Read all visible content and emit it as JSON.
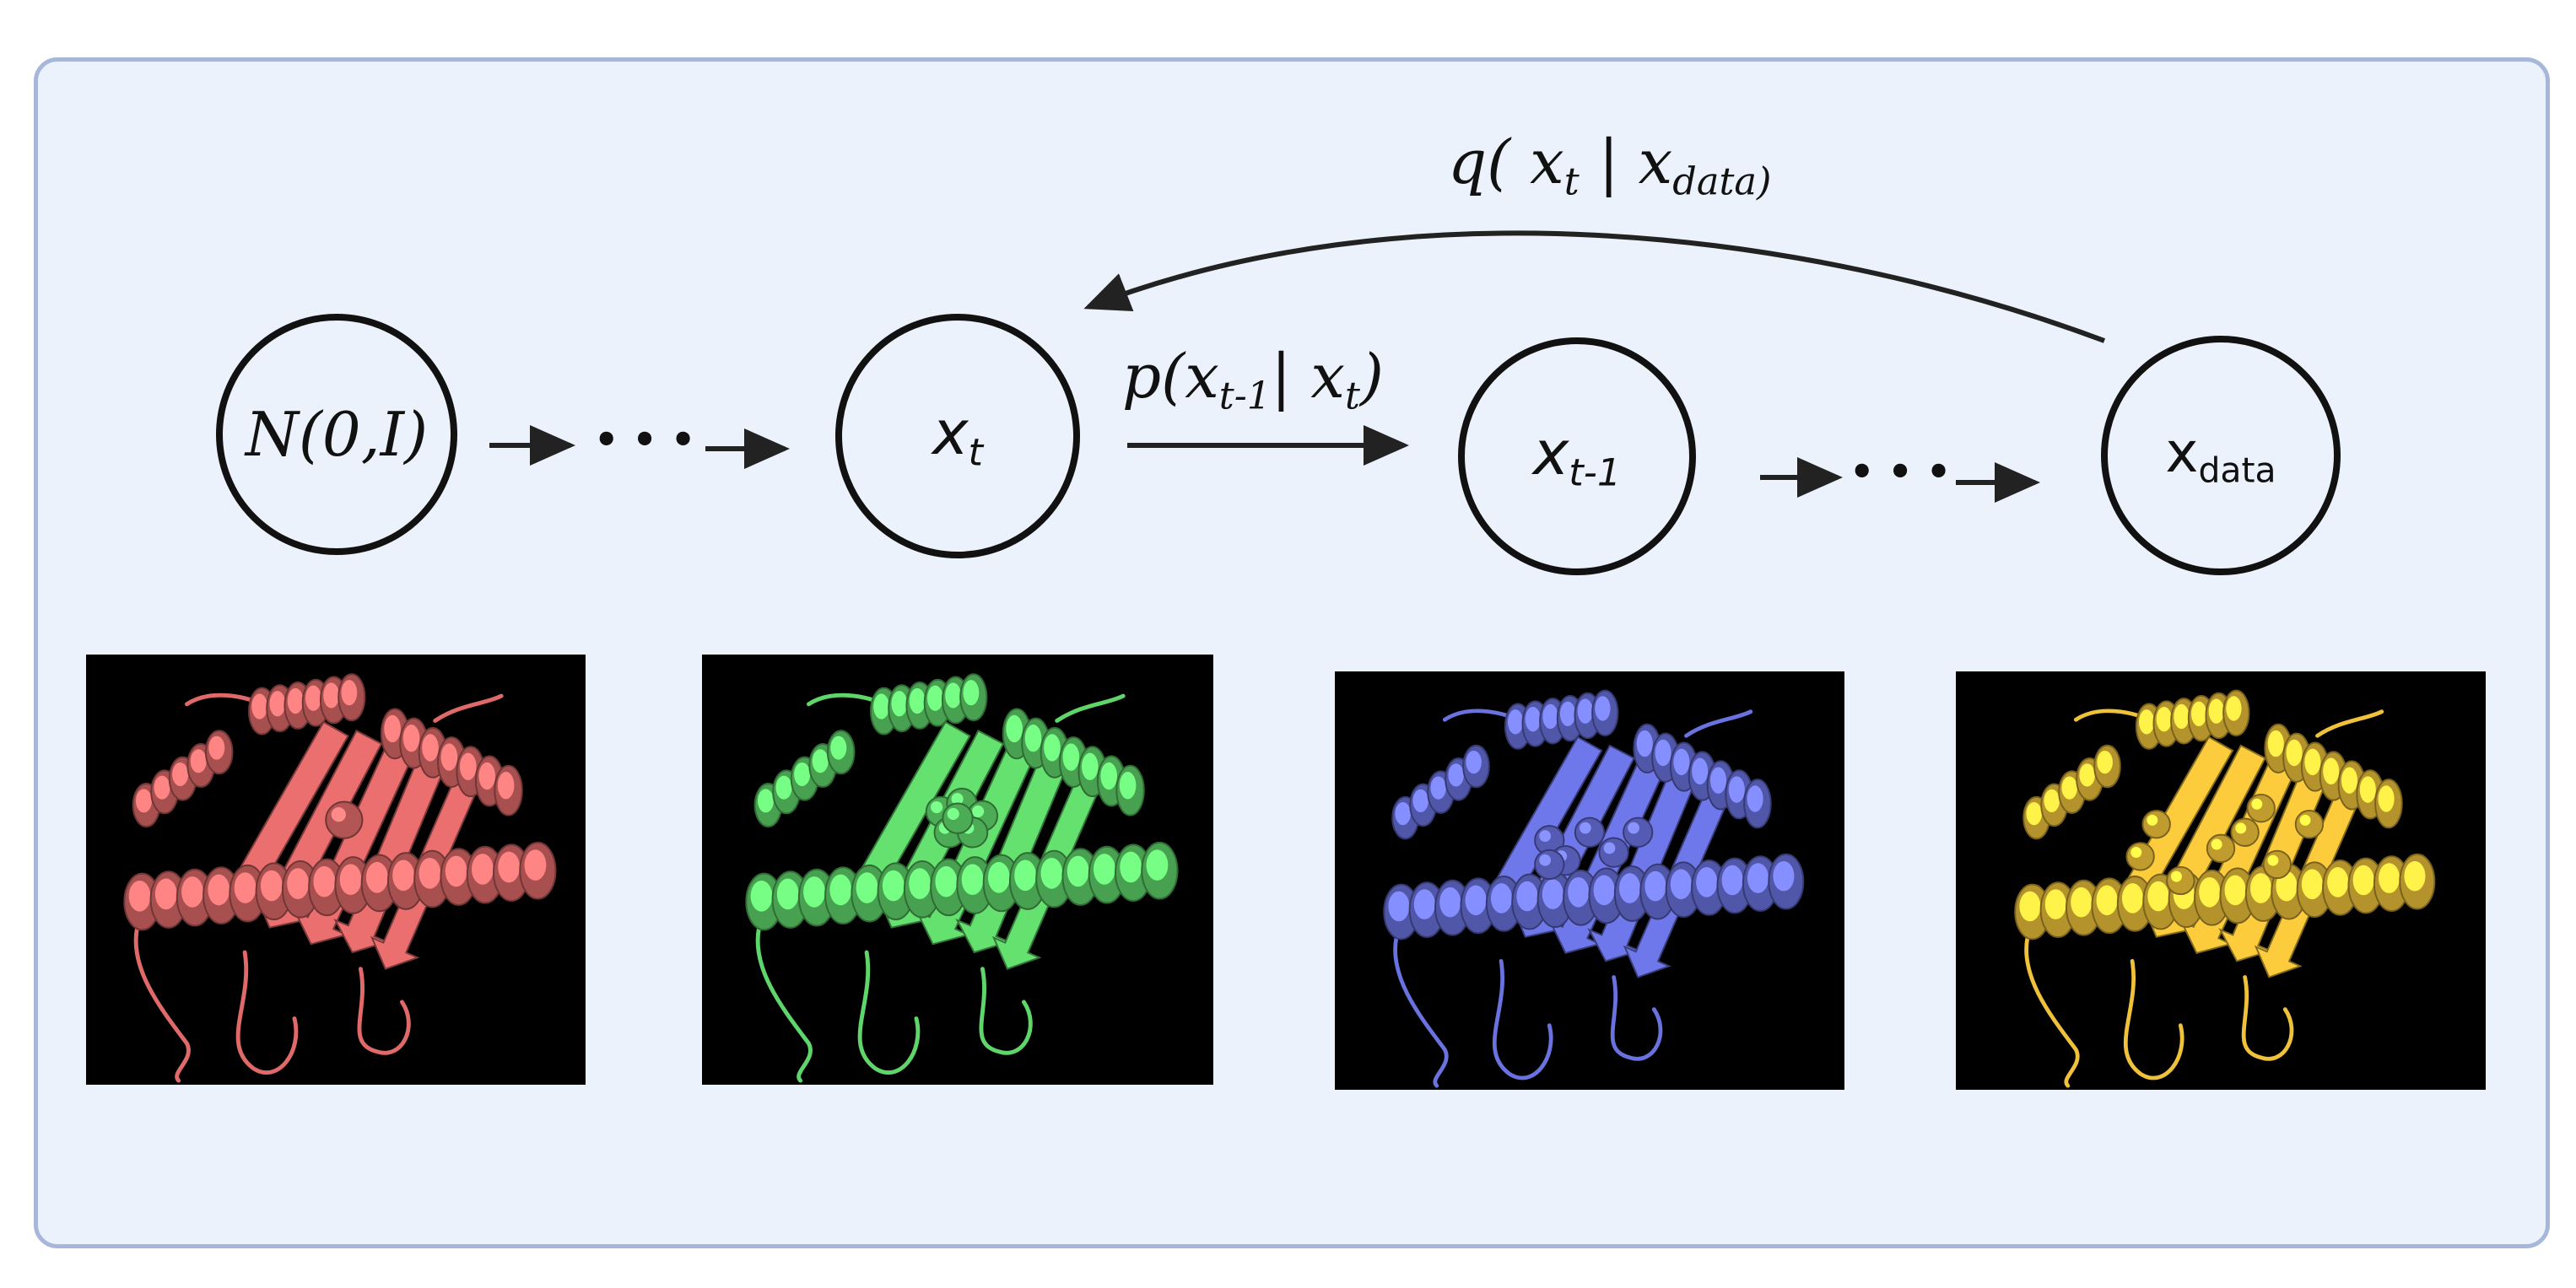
{
  "nodes": {
    "n0": {
      "text": "N(0,I)"
    },
    "nt": {
      "main": "x",
      "sub": "t"
    },
    "nt1": {
      "main": "x",
      "sub": "t-1"
    },
    "ndata": {
      "main": "x",
      "sub": "data"
    }
  },
  "edges": {
    "reverse_step": {
      "p": "p(",
      "x1": "x",
      "s1": "t-1",
      "bar": "|",
      "x2": "x",
      "s2": "t",
      "close": ")"
    },
    "forward_noise": {
      "q": "q(",
      "x1": "x",
      "s1": "t",
      "bar": "|",
      "x2": "x",
      "s2": "data)"
    }
  },
  "ellipsis": "• • •",
  "structures": [
    {
      "color_name": "salmon",
      "color": "#e06a6a",
      "ligand": "single-sphere"
    },
    {
      "color_name": "green",
      "color": "#5fd66a",
      "ligand": "sphere-cluster"
    },
    {
      "color_name": "blue",
      "color": "#6a72e0",
      "ligand": "spread-spheres"
    },
    {
      "color_name": "gold",
      "color": "#f0c23a",
      "ligand": "many-spheres"
    }
  ]
}
